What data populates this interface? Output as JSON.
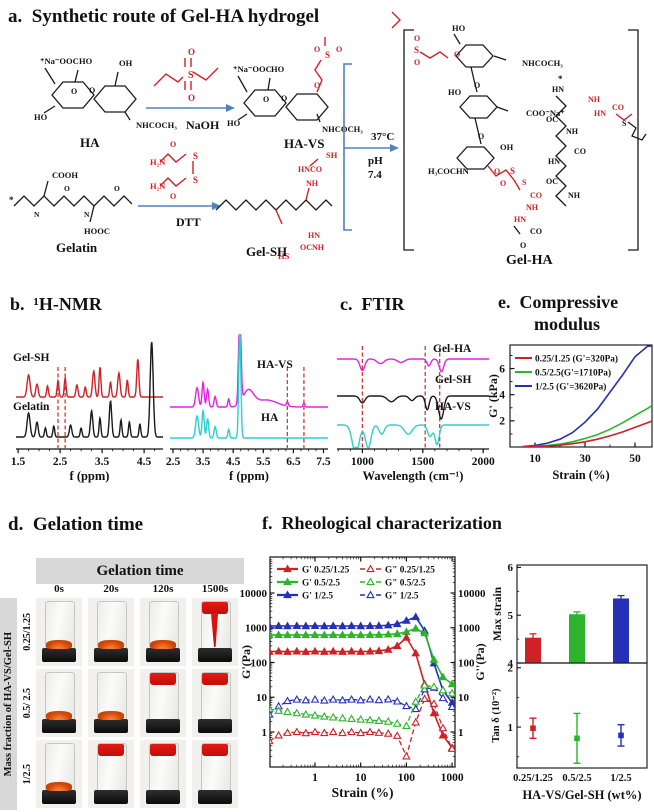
{
  "figure": {
    "colors": {
      "red": "#cf2127",
      "green": "#2cb52c",
      "blue": "#2431b4",
      "magenta": "#e124dd",
      "cyan": "#2ecfcf",
      "black": "#1a1a1a",
      "chem_red": "#cf2127",
      "arrow_blue": "#4f81bd",
      "dash_red": "#cc3a33",
      "band_gray": "#d8d8d8"
    }
  },
  "panel_a": {
    "title": "a.  Synthetic route of Gel-HA hydrogel",
    "atoms": {
      "o": "O",
      "s": "S",
      "n": "N",
      "h": "H",
      "star": "*",
      "ho": "HO",
      "oh": "OH",
      "nh": "NH",
      "hn": "HN",
      "co": "CO",
      "oc": "OC",
      "sh": "SH",
      "hs": "HS",
      "hnco": "HNCO",
      "ocnh": "OCNH",
      "h2n": "H₂N",
      "cooh": "COOH",
      "hooc": "HOOC",
      "naooc": "⁺Na⁻OOC",
      "coona": "COO⁻Na⁺",
      "nhcoch3": "NHCOCH₃",
      "h3cochn": "H₃COCHN"
    },
    "labels": {
      "ha": "HA",
      "havs": "HA-VS",
      "gelatin": "Gelatin",
      "gelsh": "Gel-SH",
      "gelha": "Gel-HA",
      "naoh": "NaOH",
      "dtt": "DTT",
      "cond_temp": "37°C",
      "cond_ph": "pH",
      "cond_ph_val": "7.4"
    }
  },
  "panel_b": {
    "title": "b.  ¹H-NMR"
  },
  "panel_c": {
    "title": "c.  FTIR"
  },
  "panel_d": {
    "title": "d.  Gelation time",
    "header": "Gelation time",
    "columns": [
      "0s",
      "20s",
      "120s",
      "1500s"
    ],
    "row_axis": "Mass fraction of  HA-VS/Gel-SH",
    "rows": [
      {
        "label": "0.25/1.25",
        "states": [
          "liquid",
          "liquid",
          "liquid",
          "dripping"
        ]
      },
      {
        "label": "0.5/ 2.5",
        "states": [
          "liquid",
          "liquid",
          "gel",
          "gel"
        ]
      },
      {
        "label": "1/2.5",
        "states": [
          "liquid",
          "gel",
          "gel",
          "gel"
        ]
      }
    ]
  },
  "panel_e": {
    "title_line1": "e.  Compressive",
    "title_line2": "modulus"
  },
  "panel_f": {
    "title": "f.  Rheological characterization"
  },
  "chart_data": [
    {
      "id": "nmr-left",
      "type": "line",
      "subtype": "nmr-spectrum",
      "xlabel": "f (ppm)",
      "xticks": [
        1.5,
        2.5,
        3.5,
        4.5
      ],
      "xrange": [
        1.45,
        4.95
      ],
      "marker_lines": [
        2.45,
        2.62
      ],
      "series": [
        {
          "name": "Gel-SH",
          "color_key": "red",
          "peaks": [
            [
              1.75,
              0.22,
              0.05
            ],
            [
              1.95,
              0.13,
              0.04
            ],
            [
              2.2,
              0.11,
              0.03
            ],
            [
              2.45,
              0.16,
              0.03
            ],
            [
              2.62,
              0.19,
              0.03
            ],
            [
              2.9,
              0.12,
              0.035
            ],
            [
              3.1,
              0.1,
              0.03
            ],
            [
              3.3,
              0.26,
              0.04
            ],
            [
              3.45,
              0.3,
              0.03
            ],
            [
              3.7,
              0.15,
              0.03
            ],
            [
              3.9,
              0.24,
              0.04
            ],
            [
              4.1,
              0.17,
              0.03
            ],
            [
              4.35,
              0.38,
              0.035
            ]
          ]
        },
        {
          "name": "Gelatin",
          "color_key": "black",
          "peaks": [
            [
              1.75,
              0.24,
              0.05
            ],
            [
              1.95,
              0.15,
              0.04
            ],
            [
              2.15,
              0.09,
              0.03
            ],
            [
              2.35,
              0.11,
              0.03
            ],
            [
              2.75,
              0.12,
              0.04
            ],
            [
              3.0,
              0.09,
              0.03
            ],
            [
              3.25,
              0.26,
              0.04
            ],
            [
              3.45,
              0.19,
              0.03
            ],
            [
              3.7,
              0.36,
              0.04
            ],
            [
              3.95,
              0.17,
              0.03
            ],
            [
              4.15,
              0.15,
              0.03
            ],
            [
              4.4,
              0.13,
              0.03
            ],
            [
              4.68,
              0.95,
              0.05
            ]
          ]
        }
      ]
    },
    {
      "id": "nmr-right",
      "type": "line",
      "subtype": "nmr-spectrum",
      "xlabel": "f (ppm)",
      "xticks": [
        2.5,
        3.5,
        4.5,
        5.5,
        6.5,
        7.5
      ],
      "xrange": [
        2.4,
        7.65
      ],
      "marker_lines": [
        6.3,
        6.85
      ],
      "series": [
        {
          "name": "HA-VS",
          "color_key": "magenta",
          "peaks": [
            [
              3.3,
              0.22,
              0.07
            ],
            [
              3.5,
              0.28,
              0.05
            ],
            [
              3.65,
              0.2,
              0.05
            ],
            [
              3.9,
              0.12,
              0.05
            ],
            [
              4.35,
              0.09,
              0.04
            ],
            [
              4.72,
              1.1,
              0.055
            ],
            [
              5.0,
              0.18,
              0.25
            ],
            [
              5.6,
              0.08,
              0.5
            ],
            [
              6.3,
              0.05,
              0.04
            ],
            [
              6.85,
              0.045,
              0.04
            ]
          ]
        },
        {
          "name": "HA",
          "color_key": "cyan",
          "peaks": [
            [
              3.3,
              0.25,
              0.07
            ],
            [
              3.5,
              0.31,
              0.05
            ],
            [
              3.65,
              0.22,
              0.05
            ],
            [
              3.9,
              0.13,
              0.05
            ],
            [
              4.35,
              0.1,
              0.04
            ],
            [
              4.72,
              1.2,
              0.05
            ]
          ]
        }
      ]
    },
    {
      "id": "ftir",
      "type": "line",
      "subtype": "ftir-spectrum",
      "xlabel": "Wavelength (cm⁻¹)",
      "xticks": [
        1000,
        1500,
        2000
      ],
      "xrange": [
        790,
        2048
      ],
      "marker_lines": [
        1000,
        1520,
        1640
      ],
      "series": [
        {
          "name": "Gel-HA",
          "color_key": "magenta",
          "peaks": [
            [
              1000,
              0.1,
              28
            ],
            [
              1150,
              0.04,
              40
            ],
            [
              1320,
              0.03,
              40
            ],
            [
              1550,
              0.06,
              22
            ],
            [
              1655,
              0.11,
              26
            ]
          ]
        },
        {
          "name": "Gel-SH",
          "color_key": "black",
          "peaks": [
            [
              1000,
              0.06,
              30
            ],
            [
              1240,
              0.05,
              45
            ],
            [
              1410,
              0.04,
              30
            ],
            [
              1537,
              0.12,
              22
            ],
            [
              1652,
              0.2,
              30
            ]
          ]
        },
        {
          "name": "HA-VS",
          "color_key": "cyan",
          "peaks": [
            [
              945,
              0.25,
              40
            ],
            [
              1048,
              0.2,
              32
            ],
            [
              1160,
              0.08,
              30
            ],
            [
              1380,
              0.08,
              45
            ],
            [
              1560,
              0.1,
              28
            ],
            [
              1618,
              0.17,
              24
            ]
          ]
        }
      ]
    },
    {
      "id": "compressive",
      "type": "line",
      "title": "Compressive modulus",
      "xlabel": "Strain  (%)",
      "ylabel": "G' (kPa)",
      "xticks": [
        10,
        30,
        50
      ],
      "yticks": [
        2,
        4,
        6
      ],
      "xrange": [
        0,
        56.8
      ],
      "yrange": [
        0,
        7.8
      ],
      "legend": [
        {
          "label": "0.25/1.25 (G'=320Pa)",
          "color_key": "red"
        },
        {
          "label": "0.5/2.5(G'=1710Pa)",
          "color_key": "green"
        },
        {
          "label": "1/2.5   (G'=3620Pa)",
          "color_key": "blue"
        }
      ],
      "x": [
        5,
        10,
        15,
        20,
        25,
        30,
        35,
        40,
        45,
        50,
        55,
        57
      ],
      "series": [
        {
          "name": "1/2.5",
          "color_key": "blue",
          "y": [
            0.03,
            0.12,
            0.3,
            0.6,
            1.1,
            1.9,
            2.9,
            4.2,
            5.5,
            6.9,
            7.7,
            7.75
          ]
        },
        {
          "name": "0.5/2.5",
          "color_key": "green",
          "y": [
            0.02,
            0.05,
            0.12,
            0.22,
            0.4,
            0.65,
            0.95,
            1.35,
            1.85,
            2.4,
            2.95,
            3.2
          ]
        },
        {
          "name": "0.25/1.25",
          "color_key": "red",
          "y": [
            0.01,
            0.03,
            0.07,
            0.14,
            0.25,
            0.4,
            0.6,
            0.85,
            1.15,
            1.5,
            1.85,
            2.0
          ]
        }
      ]
    },
    {
      "id": "rheology",
      "type": "line",
      "title": "Rheological characterization",
      "xlabel": "Strain  (%)",
      "ylabel_left": "G'(Pa)",
      "ylabel_right": "G''(Pa)",
      "xticks": [
        1,
        10,
        100,
        1000
      ],
      "yticks": [
        1,
        10,
        100,
        1000,
        10000
      ],
      "xrange": [
        0.104,
        1160
      ],
      "yrange": [
        0.098,
        108000
      ],
      "xscale": "log",
      "yscale": "log",
      "legend": [
        {
          "g": "G'",
          "frac": "0.25/1.25",
          "color_key": "red",
          "style": "filled"
        },
        {
          "g": "G\"",
          "frac": "0.25/1.25",
          "color_key": "red",
          "style": "open"
        },
        {
          "g": "G'",
          "frac": "0.5/2.5",
          "color_key": "green",
          "style": "filled"
        },
        {
          "g": "G\"",
          "frac": "0.5/2.5",
          "color_key": "green",
          "style": "open"
        },
        {
          "g": "G'",
          "frac": "1/2.5",
          "color_key": "blue",
          "style": "filled"
        },
        {
          "g": "G\"",
          "frac": "1/2.5",
          "color_key": "blue",
          "style": "open"
        }
      ],
      "x": [
        0.1,
        0.16,
        0.25,
        0.4,
        0.63,
        1,
        1.6,
        2.5,
        4,
        6.3,
        10,
        16,
        25,
        40,
        63,
        100,
        160,
        250,
        400,
        630,
        1000
      ],
      "series": [
        {
          "name": "G' 1/2.5",
          "color_key": "blue",
          "style": "filled",
          "y": [
            1120,
            1130,
            1120,
            1130,
            1120,
            1130,
            1120,
            1130,
            1120,
            1130,
            1120,
            1130,
            1140,
            1180,
            1280,
            1600,
            2050,
            820,
            95,
            16,
            7
          ]
        },
        {
          "name": "G' 0.5/2.5",
          "color_key": "green",
          "style": "filled",
          "y": [
            620,
            625,
            620,
            625,
            620,
            625,
            620,
            625,
            620,
            625,
            620,
            625,
            630,
            645,
            670,
            760,
            950,
            700,
            120,
            38,
            24
          ]
        },
        {
          "name": "G' 0.25/1.25",
          "color_key": "red",
          "style": "filled",
          "y": [
            205,
            210,
            205,
            210,
            205,
            210,
            205,
            210,
            205,
            210,
            205,
            210,
            215,
            235,
            300,
            520,
            185,
            24,
            3.5,
            0.8,
            0.35
          ]
        },
        {
          "name": "G\" 1/2.5",
          "color_key": "blue",
          "style": "open",
          "y": [
            3.2,
            5.5,
            7.8,
            8.6,
            8.2,
            8.6,
            8.1,
            8.6,
            8.2,
            8.6,
            8.2,
            8.7,
            8.3,
            8.7,
            7.6,
            5.6,
            4.6,
            17,
            19,
            9.5,
            5.3
          ]
        },
        {
          "name": "G\" 0.5/2.5",
          "color_key": "green",
          "style": "open",
          "y": [
            4.6,
            4.1,
            3.8,
            3.5,
            3.2,
            3.0,
            2.8,
            2.65,
            2.5,
            2.4,
            2.3,
            2.2,
            2.1,
            2.0,
            1.75,
            1.5,
            7.5,
            22,
            20,
            16,
            13
          ]
        },
        {
          "name": "G\" 0.25/1.25",
          "color_key": "red",
          "style": "open",
          "y": [
            0.55,
            0.8,
            0.95,
            1.0,
            0.93,
            1.0,
            0.94,
            1.0,
            0.94,
            1.0,
            0.94,
            1.0,
            0.95,
            0.9,
            0.78,
            0.2,
            1.9,
            9.0,
            6.5,
            1.3,
            0.33
          ]
        }
      ]
    },
    {
      "id": "maxstrain",
      "type": "bar",
      "ylabel": "Max strain",
      "yticks": [
        4,
        5,
        6
      ],
      "yrange": [
        4,
        6.05
      ],
      "categories": [
        "0.25/1.25",
        "0.5/2.5",
        "1/2.5"
      ],
      "values": [
        4.53,
        5.02,
        5.35
      ],
      "errors": [
        0.08,
        0.05,
        0.06
      ],
      "colors": [
        "red",
        "green",
        "blue"
      ]
    },
    {
      "id": "tandelta",
      "type": "scatter",
      "ylabel": "Tan δ (10⁻²)",
      "yticks": [
        1,
        2
      ],
      "yrange": [
        0.31,
        2.08
      ],
      "xlabel": "HA-VS/Gel-SH (wt%)",
      "categories": [
        "0.25/1.25",
        "0.5/2.5",
        "1/2.5"
      ],
      "values": [
        0.98,
        0.81,
        0.86
      ],
      "errors": [
        0.17,
        0.42,
        0.18
      ],
      "colors": [
        "red",
        "green",
        "blue"
      ]
    }
  ]
}
